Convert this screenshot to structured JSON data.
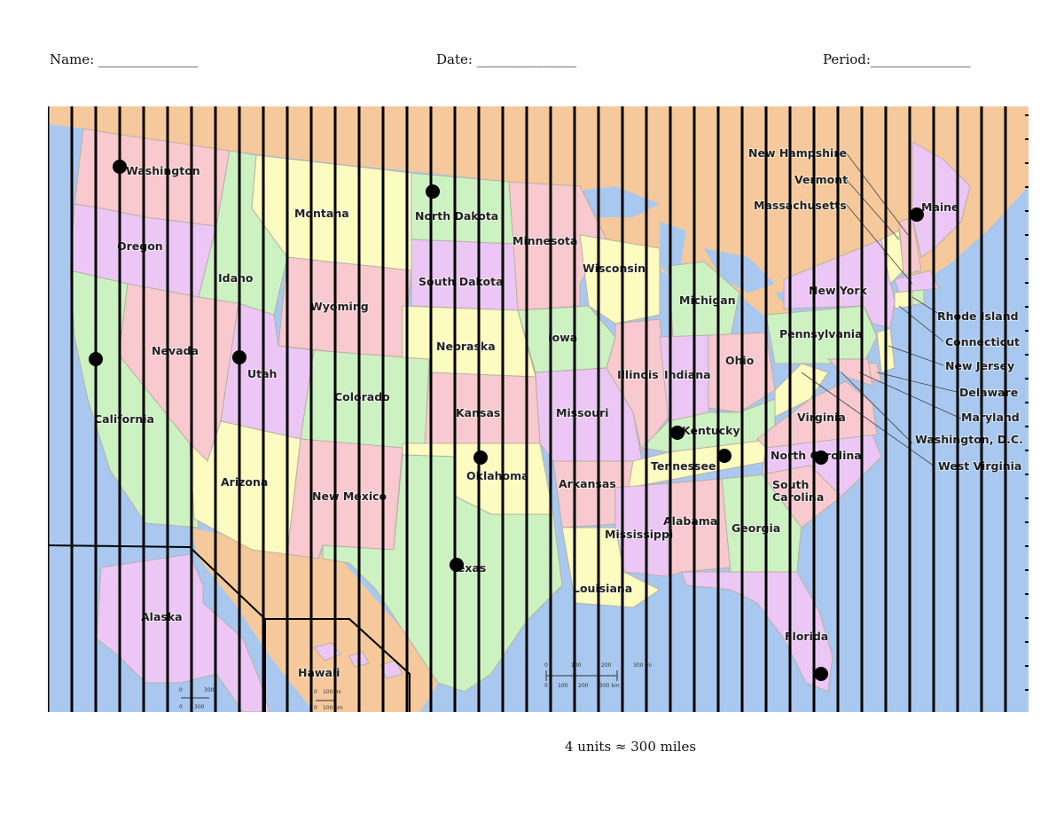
{
  "header": {
    "name_label": "Name: _______________",
    "date_label": "Date: _______________",
    "period_label": "Period:_______________"
  },
  "map": {
    "colors": {
      "water": "#a9c8ef",
      "land_foreign": "#f5c99b",
      "pink": "#f8c9cf",
      "yellow": "#fdfcc0",
      "green": "#ccf2c2",
      "purple": "#ecc7f5",
      "grid_line": "#000000",
      "point": "#000000"
    },
    "grid": {
      "lines": 41,
      "style": "vertical"
    },
    "states": [
      {
        "name": "Washington",
        "color": "pink"
      },
      {
        "name": "Oregon",
        "color": "purple"
      },
      {
        "name": "California",
        "color": "green"
      },
      {
        "name": "Idaho",
        "color": "green"
      },
      {
        "name": "Nevada",
        "color": "pink"
      },
      {
        "name": "Montana",
        "color": "yellow"
      },
      {
        "name": "Wyoming",
        "color": "pink"
      },
      {
        "name": "Utah",
        "color": "purple"
      },
      {
        "name": "Arizona",
        "color": "yellow"
      },
      {
        "name": "Colorado",
        "color": "green"
      },
      {
        "name": "New Mexico",
        "color": "pink"
      },
      {
        "name": "North Dakota",
        "color": "green"
      },
      {
        "name": "South Dakota",
        "color": "purple"
      },
      {
        "name": "Nebraska",
        "color": "yellow"
      },
      {
        "name": "Kansas",
        "color": "pink"
      },
      {
        "name": "Oklahoma",
        "color": "yellow"
      },
      {
        "name": "Texas",
        "color": "green"
      },
      {
        "name": "Minnesota",
        "color": "pink"
      },
      {
        "name": "Iowa",
        "color": "green"
      },
      {
        "name": "Missouri",
        "color": "purple"
      },
      {
        "name": "Arkansas",
        "color": "pink"
      },
      {
        "name": "Louisiana",
        "color": "yellow"
      },
      {
        "name": "Wisconsin",
        "color": "yellow"
      },
      {
        "name": "Illinois",
        "color": "pink"
      },
      {
        "name": "Michigan",
        "color": "green"
      },
      {
        "name": "Indiana",
        "color": "purple"
      },
      {
        "name": "Ohio",
        "color": "pink"
      },
      {
        "name": "Kentucky",
        "color": "green"
      },
      {
        "name": "Tennessee",
        "color": "yellow"
      },
      {
        "name": "Mississippi",
        "color": "purple"
      },
      {
        "name": "Alabama",
        "color": "pink"
      },
      {
        "name": "Georgia",
        "color": "green"
      },
      {
        "name": "Florida",
        "color": "purple"
      },
      {
        "name": "South Carolina",
        "color": "pink"
      },
      {
        "name": "North Carolina",
        "color": "purple"
      },
      {
        "name": "Virginia",
        "color": "pink"
      },
      {
        "name": "West Virginia",
        "color": "yellow"
      },
      {
        "name": "Pennsylvania",
        "color": "green"
      },
      {
        "name": "New York",
        "color": "purple"
      },
      {
        "name": "New Jersey",
        "color": "yellow"
      },
      {
        "name": "Delaware",
        "color": "pink"
      },
      {
        "name": "Maryland",
        "color": "pink"
      },
      {
        "name": "Maine",
        "color": "purple"
      },
      {
        "name": "Vermont",
        "color": "yellow"
      },
      {
        "name": "New Hampshire",
        "color": "pink"
      },
      {
        "name": "Massachusetts",
        "color": "purple"
      },
      {
        "name": "Connecticut",
        "color": "yellow"
      },
      {
        "name": "Rhode Island",
        "color": "green"
      },
      {
        "name": "Washington, D.C.",
        "color": "pink"
      },
      {
        "name": "Alaska",
        "color": "purple"
      },
      {
        "name": "Hawaii",
        "color": "purple"
      }
    ],
    "scale_bars": {
      "main_mi": [
        "0",
        "100",
        "200",
        "300 mi"
      ],
      "main_km": [
        "0",
        "100",
        "200",
        "300 km"
      ],
      "alaska_mi": [
        "0",
        "300"
      ],
      "alaska_km": [
        "0",
        "300"
      ],
      "hawaii_mi": [
        "0",
        "100 mi"
      ],
      "hawaii_km": [
        "0",
        "100 km"
      ]
    }
  },
  "scale_note": "4 units ≈ 300 miles"
}
